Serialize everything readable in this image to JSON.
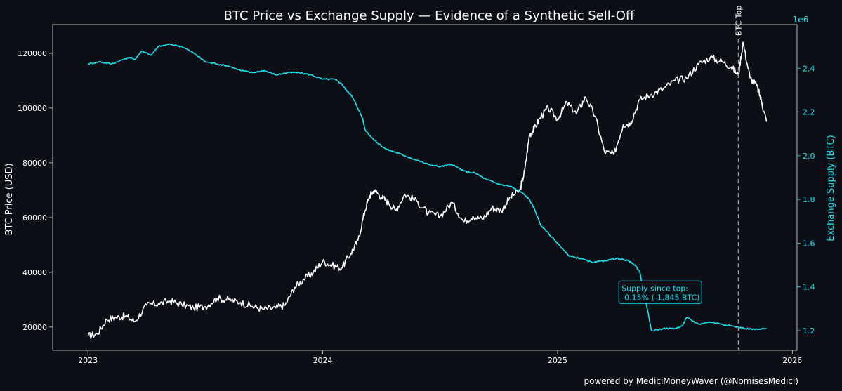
{
  "chart_data": {
    "type": "line",
    "title": "BTC Price vs Exchange Supply — Evidence of a Synthetic Sell-Off",
    "xlabel": "",
    "xlim": [
      2022.85,
      2026.02
    ],
    "x_ticks": [
      2023,
      2024,
      2025,
      2026
    ],
    "x_tick_labels": [
      "2023",
      "2024",
      "2025",
      "2026"
    ],
    "left_axis": {
      "label": "BTC Price (USD)",
      "ylim": [
        11500,
        130500
      ],
      "ticks": [
        20000,
        40000,
        60000,
        80000,
        100000,
        120000
      ],
      "tick_labels": [
        "20000",
        "40000",
        "60000",
        "80000",
        "100000",
        "120000"
      ]
    },
    "right_axis": {
      "label": "Exchange Supply (BTC)",
      "offset_label": "1e6",
      "ylim": [
        1110000,
        2600000
      ],
      "ticks": [
        1200000,
        1400000,
        1600000,
        1800000,
        2000000,
        2200000,
        2400000
      ],
      "tick_labels": [
        "1.2",
        "1.4",
        "1.6",
        "1.8",
        "2.0",
        "2.2",
        "2.4"
      ]
    },
    "series": [
      {
        "name": "BTC Price",
        "axis": "left",
        "color": "#ffffff",
        "x": [
          2023.0,
          2023.04,
          2023.08,
          2023.12,
          2023.16,
          2023.2,
          2023.25,
          2023.3,
          2023.35,
          2023.4,
          2023.45,
          2023.5,
          2023.55,
          2023.6,
          2023.65,
          2023.7,
          2023.75,
          2023.8,
          2023.84,
          2023.88,
          2023.92,
          2023.96,
          2024.0,
          2024.04,
          2024.08,
          2024.12,
          2024.15,
          2024.18,
          2024.2,
          2024.22,
          2024.25,
          2024.28,
          2024.31,
          2024.35,
          2024.4,
          2024.45,
          2024.5,
          2024.55,
          2024.6,
          2024.64,
          2024.68,
          2024.72,
          2024.76,
          2024.8,
          2024.84,
          2024.86,
          2024.88,
          2024.9,
          2024.93,
          2024.96,
          2025.0,
          2025.04,
          2025.08,
          2025.12,
          2025.16,
          2025.2,
          2025.24,
          2025.28,
          2025.31,
          2025.35,
          2025.4,
          2025.45,
          2025.5,
          2025.55,
          2025.6,
          2025.65,
          2025.7,
          2025.74,
          2025.77,
          2025.79,
          2025.82,
          2025.85,
          2025.87,
          2025.89
        ],
        "values": [
          16700,
          17500,
          22800,
          23500,
          24000,
          22000,
          28000,
          28500,
          29500,
          28200,
          27000,
          27500,
          30500,
          30000,
          29000,
          27500,
          26500,
          27000,
          28000,
          34500,
          37500,
          40000,
          44000,
          42500,
          41500,
          47000,
          51500,
          62500,
          68000,
          70000,
          67500,
          65500,
          62500,
          68500,
          66000,
          61500,
          60500,
          65500,
          58500,
          60500,
          59500,
          63500,
          62500,
          67500,
          70000,
          77000,
          90000,
          92500,
          97000,
          100000,
          96000,
          102000,
          98000,
          104000,
          97000,
          84000,
          83000,
          94000,
          94500,
          103000,
          105000,
          107000,
          110000,
          111000,
          116000,
          118500,
          117000,
          115000,
          112000,
          124000,
          111000,
          108000,
          102000,
          95000
        ]
      },
      {
        "name": "Exchange Supply",
        "axis": "right",
        "color": "#19e4f0",
        "x": [
          2023.0,
          2023.05,
          2023.1,
          2023.15,
          2023.18,
          2023.2,
          2023.23,
          2023.27,
          2023.3,
          2023.35,
          2023.4,
          2023.45,
          2023.5,
          2023.55,
          2023.6,
          2023.65,
          2023.7,
          2023.75,
          2023.8,
          2023.85,
          2023.9,
          2023.95,
          2024.0,
          2024.05,
          2024.08,
          2024.1,
          2024.12,
          2024.14,
          2024.17,
          2024.18,
          2024.22,
          2024.27,
          2024.3,
          2024.35,
          2024.4,
          2024.45,
          2024.5,
          2024.55,
          2024.6,
          2024.65,
          2024.7,
          2024.75,
          2024.8,
          2024.85,
          2024.88,
          2024.9,
          2024.93,
          2025.0,
          2025.05,
          2025.1,
          2025.15,
          2025.2,
          2025.25,
          2025.3,
          2025.33,
          2025.35,
          2025.38,
          2025.4,
          2025.45,
          2025.5,
          2025.53,
          2025.55,
          2025.6,
          2025.65,
          2025.7,
          2025.75,
          2025.8,
          2025.85,
          2025.89
        ],
        "values": [
          2420000,
          2430000,
          2420000,
          2440000,
          2450000,
          2440000,
          2480000,
          2460000,
          2500000,
          2510000,
          2500000,
          2470000,
          2430000,
          2420000,
          2410000,
          2390000,
          2380000,
          2390000,
          2370000,
          2380000,
          2380000,
          2370000,
          2350000,
          2350000,
          2330000,
          2300000,
          2280000,
          2240000,
          2170000,
          2120000,
          2070000,
          2030000,
          2020000,
          2000000,
          1980000,
          1960000,
          1950000,
          1960000,
          1930000,
          1920000,
          1890000,
          1870000,
          1860000,
          1830000,
          1800000,
          1760000,
          1680000,
          1600000,
          1540000,
          1530000,
          1510000,
          1520000,
          1530000,
          1520000,
          1500000,
          1470000,
          1310000,
          1200000,
          1210000,
          1210000,
          1220000,
          1260000,
          1230000,
          1240000,
          1230000,
          1220000,
          1210000,
          1205000,
          1210000
        ]
      }
    ],
    "annotations": [
      {
        "text": "BTC Top",
        "x": 2025.77,
        "style": "dashed-vline"
      },
      {
        "text": "Supply since top:\n-0.15% (-1,845 BTC)",
        "x": 2025.27,
        "y_right": 1350000,
        "style": "box"
      }
    ],
    "footer": "powered by MediciMoneyWaver (@NomisesMedici)"
  },
  "colors": {
    "background": "#0c0f16",
    "axis": "#d9d9d9",
    "price": "#ffffff",
    "supply": "#19e4f0",
    "vline": "#9a9a9a"
  }
}
